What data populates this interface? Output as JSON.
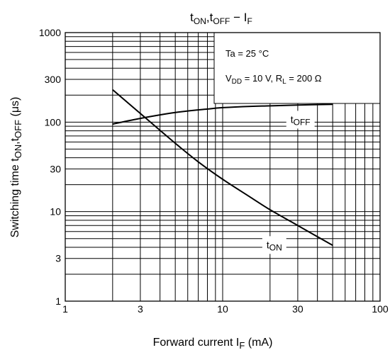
{
  "chart_data": {
    "type": "line",
    "title": {
      "base1": "t",
      "sub1": "ON",
      "sep": ",",
      "base2": "t",
      "sub2": "OFF",
      "dash": " − ",
      "base3": "I",
      "sub3": "F"
    },
    "xlabel": {
      "base": "Forward current   I",
      "sub": "F",
      "unit": "   (mA)"
    },
    "ylabel": {
      "base1": "Switching time   t",
      "sub1": "ON",
      "sep": ",t",
      "sub2": "OFF",
      "unit": "   (μs)"
    },
    "x_scale": "log",
    "y_scale": "log",
    "xlim": [
      1,
      100
    ],
    "ylim": [
      1,
      1000
    ],
    "x_ticks": [
      {
        "v": 1,
        "label": "1"
      },
      {
        "v": 3,
        "label": "3"
      },
      {
        "v": 10,
        "label": "10"
      },
      {
        "v": 30,
        "label": "30"
      },
      {
        "v": 100,
        "label": "100"
      }
    ],
    "y_ticks": [
      {
        "v": 1,
        "label": "1"
      },
      {
        "v": 3,
        "label": "3"
      },
      {
        "v": 10,
        "label": "10"
      },
      {
        "v": 30,
        "label": "30"
      },
      {
        "v": 100,
        "label": "100"
      },
      {
        "v": 300,
        "label": "300"
      },
      {
        "v": 1000,
        "label": "1000"
      }
    ],
    "grid": true,
    "conditions": {
      "line1": "Ta = 25 °C",
      "line2": {
        "a": "V",
        "b": "DD",
        "c": " = 10 V, R",
        "d": "L",
        "e": " = 200 Ω"
      }
    },
    "series": [
      {
        "name": "tOFF",
        "label": {
          "base": "t",
          "sub": "OFF"
        },
        "label_at": [
          27,
          98
        ],
        "x": [
          2,
          3,
          5,
          8,
          10,
          15,
          20,
          30,
          50
        ],
        "y": [
          95,
          110,
          128,
          140,
          145,
          150,
          152,
          155,
          158
        ]
      },
      {
        "name": "tON",
        "label": {
          "base": "t",
          "sub": "ON"
        },
        "label_at": [
          19,
          3.9
        ],
        "x": [
          2,
          3,
          5,
          7,
          10,
          15,
          20,
          30,
          50
        ],
        "y": [
          230,
          125,
          58,
          36,
          23,
          14.5,
          10.5,
          7,
          4.2
        ]
      }
    ]
  }
}
